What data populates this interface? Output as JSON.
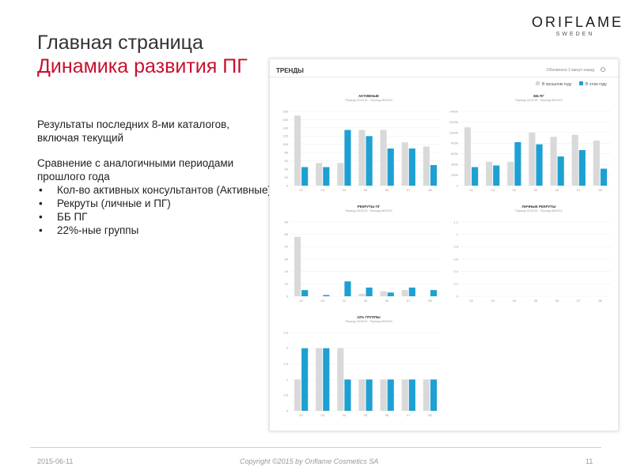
{
  "slide": {
    "title_line1": "Главная страница",
    "title_line2": "Динамика развития ПГ",
    "logo_main": "ORIFLAME",
    "logo_sub": "SWEDEN",
    "text_block1": "Результаты последних 8-ми каталогов, включая текущий",
    "text_block2_intro": "Сравнение с аналогичными периодами прошлого года",
    "bullets": [
      "Кол-во активных консультантов (Активные)",
      "Рекруты (личные и ПГ)",
      "ББ ПГ",
      "22%-ные группы"
    ],
    "footer_date": "2015-06-11",
    "footer_copyright": "Copyright ©2015 by Oriflame Cosmetics SA",
    "page_number": "11"
  },
  "dashboard": {
    "header_title": "ТРЕНДЫ",
    "updated_text": "Обновлено 2 минут назад",
    "legend": [
      "В прошлом году",
      "В этом году"
    ],
    "colors": {
      "last_year": "#d9d9d9",
      "this_year": "#1ea0d2"
    }
  },
  "chart_data": [
    {
      "type": "bar",
      "title": "АКТИВНЫЕ",
      "subtitle": "Период 02/2015 - Период 08/2015",
      "categories": [
        "02",
        "03",
        "04",
        "05",
        "06",
        "07",
        "08"
      ],
      "series": [
        {
          "name": "В прошлом году",
          "values": [
            170,
            55,
            55,
            135,
            135,
            105,
            95
          ]
        },
        {
          "name": "В этом году",
          "values": [
            45,
            45,
            135,
            120,
            90,
            90,
            50
          ]
        }
      ],
      "ylim": [
        0,
        180
      ],
      "yticks": [
        "0",
        "20",
        "40",
        "60",
        "80",
        "100",
        "120",
        "140",
        "160",
        "180"
      ]
    },
    {
      "type": "bar",
      "title": "ББ ПГ",
      "subtitle": "Период 02/2015 - Период 08/2015",
      "categories": [
        "02",
        "03",
        "04",
        "05",
        "06",
        "07",
        "08"
      ],
      "series": [
        {
          "name": "В прошлом году",
          "values": [
            11000,
            4500,
            4500,
            10000,
            9200,
            9600,
            8500
          ]
        },
        {
          "name": "В этом году",
          "values": [
            3500,
            3800,
            8200,
            7800,
            5500,
            6700,
            3200
          ]
        }
      ],
      "ylim": [
        0,
        14000
      ],
      "yticks": [
        "0",
        "2000",
        "4000",
        "6000",
        "8000",
        "10000",
        "12000",
        "14000"
      ]
    },
    {
      "type": "bar",
      "title": "РЕКРУТЫ ПГ",
      "subtitle": "Период 02/2015 - Период 08/2015",
      "categories": [
        "02",
        "03",
        "04",
        "05",
        "06",
        "07",
        "08"
      ],
      "series": [
        {
          "name": "В прошлом году",
          "values": [
            48,
            0,
            0,
            2,
            4,
            5,
            0
          ]
        },
        {
          "name": "В этом году",
          "values": [
            5,
            1,
            12,
            7,
            3,
            7,
            5
          ]
        }
      ],
      "ylim": [
        0,
        60
      ],
      "yticks": [
        "0",
        "10",
        "20",
        "30",
        "40",
        "50",
        "60"
      ]
    },
    {
      "type": "bar",
      "title": "ЛИЧНЫЕ РЕКРУТЫ",
      "subtitle": "Период 02/2015 - Период 08/2015",
      "categories": [
        "02",
        "03",
        "04",
        "05",
        "06",
        "07",
        "08"
      ],
      "series": [
        {
          "name": "В прошлом году",
          "values": [
            0,
            0,
            0,
            0,
            0,
            0,
            0
          ]
        },
        {
          "name": "В этом году",
          "values": [
            0,
            0,
            0,
            0,
            0,
            0,
            0
          ]
        }
      ],
      "ylim": [
        0,
        1.2
      ],
      "yticks": [
        "0",
        "0.2",
        "0.4",
        "0.6",
        "0.8",
        "1",
        "1.2"
      ]
    },
    {
      "type": "bar",
      "title": "22% ГРУППЫ",
      "subtitle": "Период 02/2015 - Период 08/2015",
      "categories": [
        "02",
        "03",
        "04",
        "05",
        "06",
        "07",
        "08"
      ],
      "series": [
        {
          "name": "В прошлом году",
          "values": [
            1,
            2,
            2,
            1,
            1,
            1,
            1
          ]
        },
        {
          "name": "В этом году",
          "values": [
            2,
            2,
            1,
            1,
            1,
            1,
            1
          ]
        }
      ],
      "ylim": [
        0,
        2.5
      ],
      "yticks": [
        "0",
        "0.5",
        "1",
        "1.5",
        "2",
        "2.5"
      ]
    }
  ]
}
